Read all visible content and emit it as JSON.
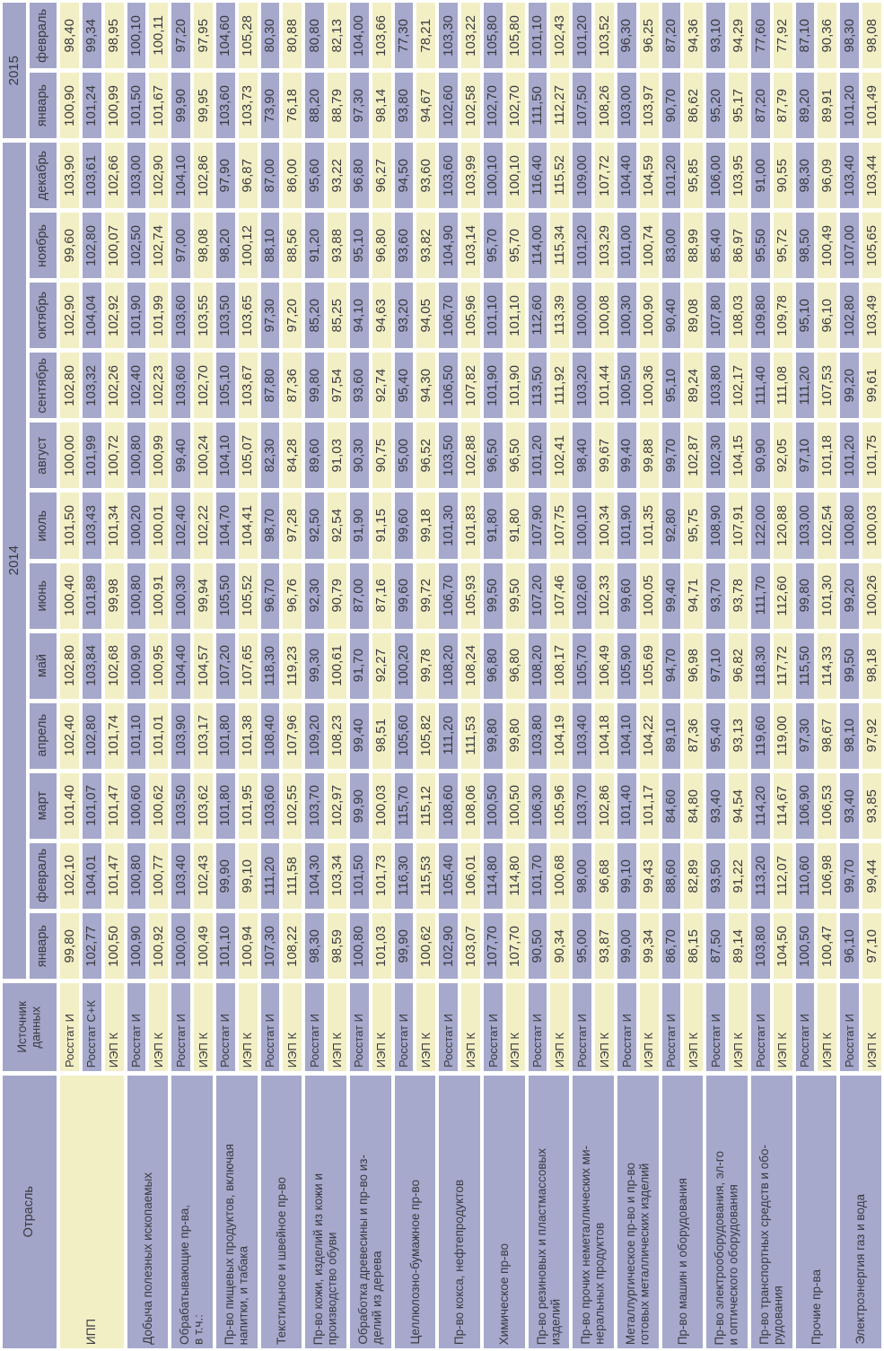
{
  "colors": {
    "cell_yellow": "#f2efc5",
    "cell_lavender": "#a6a9cc",
    "header_lavender": "#a2a5c8",
    "text": "#3a3a40",
    "grid_gap": "#ffffff"
  },
  "table": {
    "industry_header": "Отрасль",
    "source_header": "Источник\nданных",
    "years": [
      {
        "label": "2015",
        "span": 2
      },
      {
        "label": "2014",
        "span": 12
      }
    ],
    "months": [
      "февраль",
      "январь",
      "декабрь",
      "ноябрь",
      "октябрь",
      "сентябрь",
      "август",
      "июль",
      "июнь",
      "май",
      "апрель",
      "март",
      "февраль",
      "январь"
    ],
    "industries": [
      {
        "text": "ИПП",
        "span": 3
      },
      {
        "text": "Добыча полезных ископаемых",
        "span": 2
      },
      {
        "text": "Обрабатывающие пр-ва,\nв т.ч.:",
        "span": 2
      },
      {
        "text": "Пр-во пищевых продуктов, включая\nнапитки, и табака",
        "span": 2
      },
      {
        "text": "Текстильное и швейное пр-во",
        "span": 2
      },
      {
        "text": "Пр-во кожи, изделий из кожи и\nпроизводство обуви",
        "span": 2
      },
      {
        "text": "Обработка древесины и пр-во из-\nделий из дерева",
        "span": 2
      },
      {
        "text": "Целлюлозно-бумажное пр-во",
        "span": 2
      },
      {
        "text": "Пр-во кокса, нефтепродуктов",
        "span": 2
      },
      {
        "text": "Химическое пр-во",
        "span": 2
      },
      {
        "text": "Пр-во резиновых и пластмассовых\nизделий",
        "span": 2
      },
      {
        "text": "Пр-во прочих неметаллических ми-\nнеральных продуктов",
        "span": 2
      },
      {
        "text": "Металлургическое пр-во и пр-во\nготовых металлических изделий",
        "span": 2
      },
      {
        "text": "Пр-во машин и оборудования",
        "span": 2
      },
      {
        "text": "Пр-во электрооборудования, эл-го\nи оптического оборудования",
        "span": 2
      },
      {
        "text": "Пр-во транспортных средств и обо-\nрудования",
        "span": 2
      },
      {
        "text": "Прочие пр-ва",
        "span": 2
      },
      {
        "text": "Электроэнергия газ и вода",
        "span": 2
      }
    ],
    "sources": [
      "Росстат И",
      "Росстат С+К",
      "ИЭП К",
      "Росстат И",
      "ИЭП К",
      "Росстат И",
      "ИЭП К",
      "Росстат И",
      "ИЭП К",
      "Росстат И",
      "ИЭП К",
      "Росстат И",
      "ИЭП К",
      "Росстат И",
      "ИЭП К",
      "Росстат И",
      "ИЭП К",
      "Росстат И",
      "ИЭП К",
      "Росстат И",
      "ИЭП К",
      "Росстат И",
      "ИЭП К",
      "Росстат И",
      "ИЭП К",
      "Росстат И",
      "ИЭП К",
      "Росстат И",
      "ИЭП К",
      "Росстат И",
      "ИЭП К",
      "Росстат И",
      "ИЭП К",
      "Росстат И",
      "ИЭП К",
      "Росстат И",
      "ИЭП К"
    ],
    "values": [
      [
        "98,40",
        "99,34",
        "98,95",
        "100,10",
        "100,11",
        "97,20",
        "97,95",
        "104,60",
        "105,28",
        "80,30",
        "80,88",
        "80,80",
        "82,13",
        "104,00",
        "103,66",
        "77,30",
        "78,21",
        "103,30",
        "103,22",
        "105,80",
        "105,80",
        "101,10",
        "102,43",
        "101,20",
        "103,52",
        "96,30",
        "96,25",
        "87,20",
        "94,36",
        "93,10",
        "94,29",
        "77,60",
        "77,92",
        "87,10",
        "90,36",
        "98,30",
        "98,08"
      ],
      [
        "100,90",
        "101,24",
        "100,99",
        "101,50",
        "101,67",
        "99,90",
        "99,95",
        "103,60",
        "103,73",
        "73,90",
        "76,18",
        "88,20",
        "88,79",
        "97,30",
        "98,14",
        "93,80",
        "94,67",
        "102,60",
        "102,58",
        "102,70",
        "102,70",
        "111,50",
        "112,27",
        "107,50",
        "108,26",
        "103,00",
        "103,97",
        "90,70",
        "86,62",
        "95,20",
        "95,17",
        "87,20",
        "87,79",
        "89,20",
        "89,91",
        "101,20",
        "101,49"
      ],
      [
        "103,90",
        "103,61",
        "102,66",
        "103,00",
        "102,90",
        "104,10",
        "102,86",
        "97,90",
        "96,87",
        "87,00",
        "86,00",
        "95,60",
        "93,22",
        "96,80",
        "96,27",
        "94,50",
        "93,60",
        "103,60",
        "103,99",
        "100,10",
        "100,10",
        "116,40",
        "115,52",
        "109,00",
        "107,72",
        "104,40",
        "104,59",
        "101,20",
        "95,85",
        "106,00",
        "103,95",
        "91,00",
        "90,55",
        "98,30",
        "96,09",
        "103,40",
        "103,44"
      ],
      [
        "99,60",
        "102,80",
        "100,07",
        "102,50",
        "102,74",
        "97,00",
        "98,08",
        "98,20",
        "100,12",
        "88,10",
        "88,56",
        "91,20",
        "93,88",
        "95,10",
        "96,80",
        "93,60",
        "93,82",
        "104,90",
        "103,14",
        "95,70",
        "95,70",
        "114,00",
        "115,34",
        "101,20",
        "103,29",
        "101,00",
        "100,74",
        "83,00",
        "88,99",
        "85,40",
        "86,97",
        "95,50",
        "95,72",
        "98,50",
        "100,49",
        "107,00",
        "105,65"
      ],
      [
        "102,90",
        "104,04",
        "102,92",
        "101,90",
        "101,99",
        "103,60",
        "103,55",
        "103,50",
        "103,65",
        "97,30",
        "97,20",
        "85,20",
        "85,25",
        "94,10",
        "94,63",
        "93,20",
        "94,05",
        "106,70",
        "105,96",
        "101,10",
        "101,10",
        "112,60",
        "113,39",
        "100,00",
        "100,08",
        "100,30",
        "100,90",
        "90,40",
        "89,08",
        "107,80",
        "108,03",
        "109,80",
        "109,78",
        "95,10",
        "96,10",
        "102,80",
        "103,49"
      ],
      [
        "102,80",
        "103,32",
        "102,26",
        "102,40",
        "102,23",
        "103,60",
        "102,70",
        "105,10",
        "103,67",
        "87,80",
        "87,36",
        "99,80",
        "97,54",
        "93,60",
        "92,74",
        "95,40",
        "94,30",
        "106,50",
        "107,82",
        "101,90",
        "101,90",
        "113,50",
        "111,92",
        "103,20",
        "101,44",
        "100,50",
        "100,36",
        "95,10",
        "89,24",
        "103,80",
        "102,17",
        "111,40",
        "111,08",
        "111,20",
        "107,53",
        "99,20",
        "99,61"
      ],
      [
        "100,00",
        "101,99",
        "100,72",
        "100,80",
        "100,99",
        "99,40",
        "100,24",
        "104,10",
        "105,07",
        "82,30",
        "84,28",
        "89,60",
        "91,03",
        "90,30",
        "90,75",
        "95,00",
        "96,52",
        "103,50",
        "102,88",
        "96,50",
        "96,50",
        "101,20",
        "102,41",
        "98,40",
        "99,67",
        "99,40",
        "99,88",
        "99,70",
        "102,87",
        "102,30",
        "104,15",
        "90,90",
        "92,05",
        "97,10",
        "101,18",
        "101,20",
        "101,75"
      ],
      [
        "101,50",
        "103,43",
        "101,34",
        "100,20",
        "100,01",
        "102,40",
        "102,22",
        "104,70",
        "104,41",
        "98,70",
        "97,28",
        "92,50",
        "92,54",
        "91,90",
        "91,15",
        "99,60",
        "99,18",
        "101,30",
        "101,83",
        "91,80",
        "91,80",
        "107,90",
        "107,75",
        "100,10",
        "100,34",
        "101,90",
        "101,35",
        "92,80",
        "95,75",
        "108,90",
        "107,91",
        "122,00",
        "120,88",
        "103,00",
        "102,54",
        "100,80",
        "100,03"
      ],
      [
        "100,40",
        "101,89",
        "99,98",
        "100,80",
        "100,91",
        "100,30",
        "99,94",
        "105,50",
        "105,52",
        "96,70",
        "96,76",
        "92,30",
        "90,79",
        "87,00",
        "87,16",
        "99,60",
        "99,72",
        "106,70",
        "105,93",
        "99,50",
        "99,50",
        "107,20",
        "107,46",
        "102,60",
        "102,33",
        "99,60",
        "100,05",
        "99,40",
        "94,71",
        "93,70",
        "93,78",
        "111,70",
        "112,60",
        "99,80",
        "101,30",
        "99,20",
        "100,26"
      ],
      [
        "102,80",
        "103,84",
        "102,68",
        "100,90",
        "100,95",
        "104,40",
        "104,57",
        "107,20",
        "107,65",
        "118,30",
        "119,23",
        "99,30",
        "100,61",
        "91,70",
        "92,27",
        "100,20",
        "99,78",
        "108,20",
        "108,24",
        "96,80",
        "96,80",
        "108,20",
        "108,17",
        "105,70",
        "106,49",
        "105,90",
        "105,69",
        "94,70",
        "96,98",
        "97,10",
        "96,82",
        "118,30",
        "117,72",
        "115,50",
        "114,33",
        "99,50",
        "98,18"
      ],
      [
        "102,40",
        "102,80",
        "101,74",
        "101,10",
        "101,01",
        "103,90",
        "103,17",
        "101,80",
        "101,38",
        "108,40",
        "107,96",
        "109,20",
        "108,23",
        "99,40",
        "98,51",
        "105,60",
        "105,82",
        "111,20",
        "111,53",
        "99,80",
        "99,80",
        "103,80",
        "104,19",
        "103,40",
        "104,18",
        "104,10",
        "104,22",
        "89,10",
        "87,36",
        "95,40",
        "93,13",
        "119,60",
        "119,00",
        "97,30",
        "98,67",
        "98,10",
        "97,92"
      ],
      [
        "101,40",
        "101,07",
        "101,47",
        "100,60",
        "100,62",
        "103,50",
        "103,62",
        "101,80",
        "101,95",
        "103,60",
        "102,55",
        "103,70",
        "102,97",
        "99,90",
        "100,03",
        "115,70",
        "115,12",
        "108,60",
        "108,06",
        "100,50",
        "100,50",
        "106,30",
        "105,96",
        "103,70",
        "102,86",
        "101,40",
        "101,17",
        "84,60",
        "84,80",
        "93,40",
        "94,54",
        "114,20",
        "114,67",
        "106,90",
        "106,53",
        "93,40",
        "93,85"
      ],
      [
        "102,10",
        "104,01",
        "101,47",
        "100,80",
        "100,77",
        "103,40",
        "102,43",
        "99,90",
        "99,10",
        "111,20",
        "111,58",
        "104,30",
        "103,34",
        "101,50",
        "101,73",
        "116,30",
        "115,53",
        "105,40",
        "106,01",
        "114,80",
        "114,80",
        "101,70",
        "100,68",
        "98,00",
        "96,68",
        "99,10",
        "99,43",
        "88,60",
        "82,89",
        "93,50",
        "91,22",
        "113,20",
        "112,07",
        "110,60",
        "106,98",
        "99,70",
        "99,44"
      ],
      [
        "99,80",
        "102,77",
        "100,50",
        "100,90",
        "100,92",
        "100,00",
        "100,49",
        "101,10",
        "100,94",
        "107,30",
        "108,22",
        "98,30",
        "98,59",
        "100,80",
        "101,03",
        "99,90",
        "100,62",
        "102,90",
        "103,07",
        "107,70",
        "107,70",
        "90,50",
        "90,34",
        "95,00",
        "93,87",
        "99,00",
        "99,34",
        "86,70",
        "86,15",
        "87,50",
        "89,14",
        "103,80",
        "104,50",
        "100,50",
        "100,47",
        "96,10",
        "97,10"
      ]
    ]
  }
}
